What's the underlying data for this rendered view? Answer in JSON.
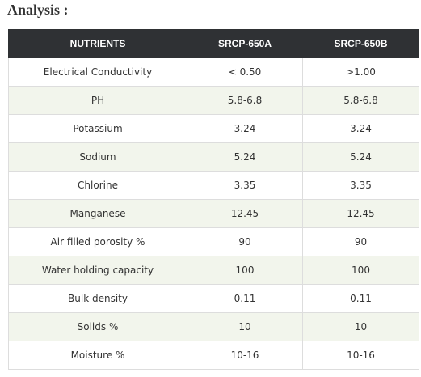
{
  "page": {
    "heading": "Analysis :"
  },
  "table": {
    "headers": [
      "NUTRIENTS",
      "SRCP-650A",
      "SRCP-650B"
    ],
    "rows": [
      [
        "Electrical Conductivity",
        "< 0.50",
        ">1.00"
      ],
      [
        "PH",
        "5.8-6.8",
        "5.8-6.8"
      ],
      [
        "Potassium",
        "3.24",
        "3.24"
      ],
      [
        "Sodium",
        "5.24",
        "5.24"
      ],
      [
        "Chlorine",
        "3.35",
        "3.35"
      ],
      [
        "Manganese",
        "12.45",
        "12.45"
      ],
      [
        "Air filled porosity %",
        "90",
        "90"
      ],
      [
        "Water holding capacity",
        "100",
        "100"
      ],
      [
        "Bulk density",
        "0.11",
        "0.11"
      ],
      [
        "Solids %",
        "10",
        "10"
      ],
      [
        "Moisture %",
        "10-16",
        "10-16"
      ]
    ]
  },
  "colors": {
    "header_background": "#2f3134",
    "header_text": "#ffffff",
    "stripe": "#f2f5ec",
    "border": "#dddddd"
  }
}
